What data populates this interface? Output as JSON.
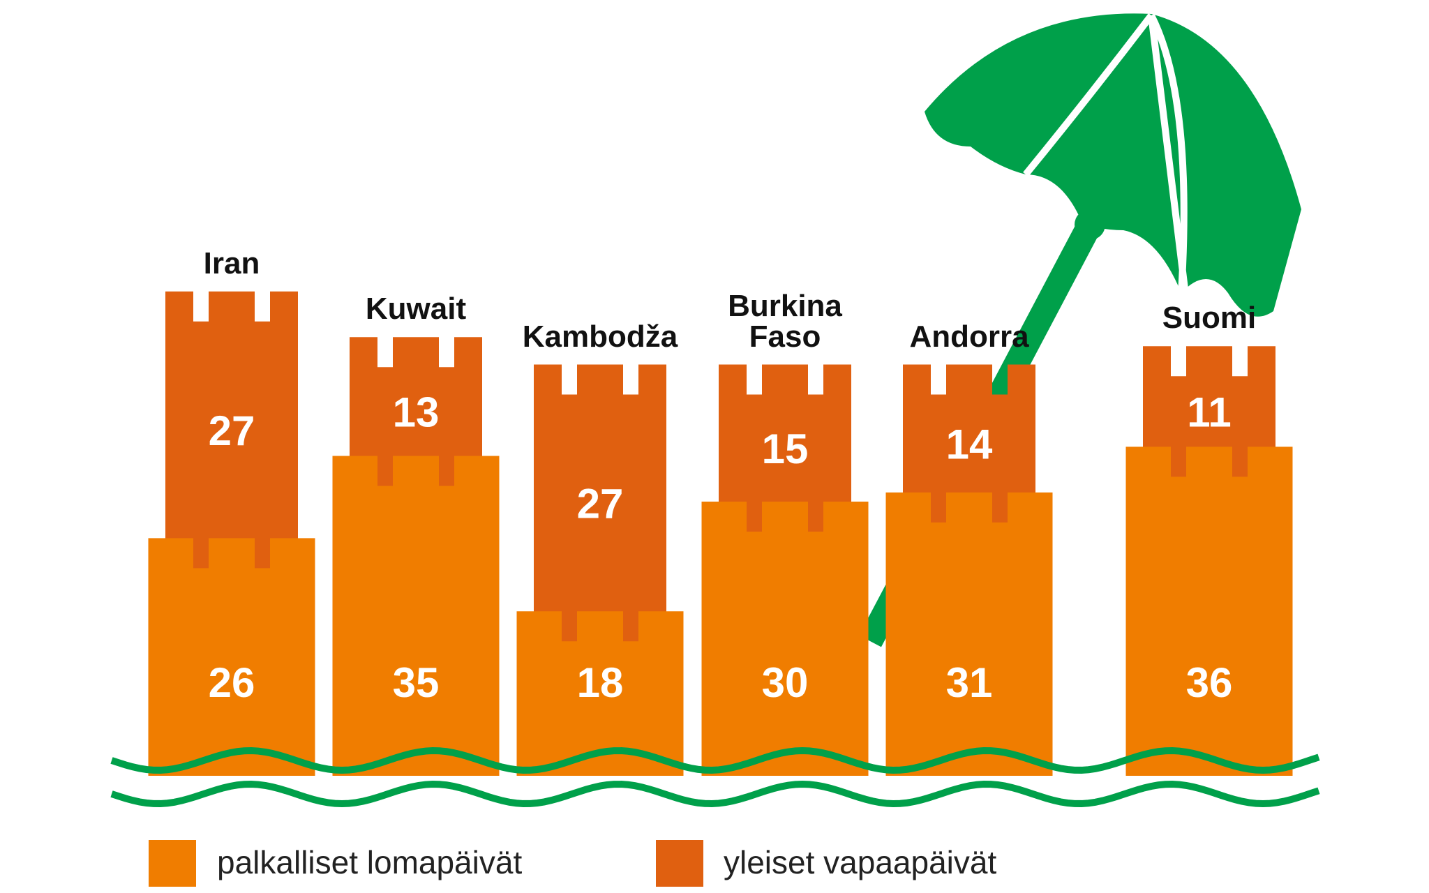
{
  "chart_data": {
    "type": "bar",
    "stacked": true,
    "categories": [
      "Iran",
      "Kuwait",
      "Kambodža",
      "Burkina Faso",
      "Andorra",
      "Suomi"
    ],
    "series": [
      {
        "name": "palkalliset lomapäivät",
        "color": "#f07d00",
        "values": [
          26,
          35,
          18,
          30,
          31,
          36
        ]
      },
      {
        "name": "yleiset vapaapäivät",
        "color": "#e06010",
        "values": [
          27,
          13,
          27,
          15,
          14,
          11
        ]
      }
    ]
  }
}
